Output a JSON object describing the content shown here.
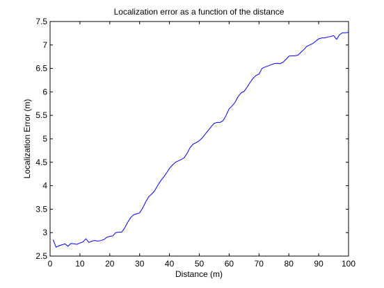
{
  "chart_data": {
    "type": "line",
    "title": "Localization error as a function of the distance",
    "xlabel": "Distance (m)",
    "ylabel": "Localization Error (m)",
    "xlim": [
      0,
      100
    ],
    "ylim": [
      2.5,
      7.5
    ],
    "xticks": [
      0,
      10,
      20,
      30,
      40,
      50,
      60,
      70,
      80,
      90,
      100
    ],
    "xtick_labels": [
      "0",
      "10",
      "20",
      "30",
      "40",
      "50",
      "60",
      "70",
      "80",
      "90",
      "100"
    ],
    "yticks": [
      2.5,
      3,
      3.5,
      4,
      4.5,
      5,
      5.5,
      6,
      6.5,
      7,
      7.5
    ],
    "ytick_labels": [
      "2.5",
      "3",
      "3.5",
      "4",
      "4.5",
      "5",
      "5.5",
      "6",
      "6.5",
      "7",
      "7.5"
    ],
    "grid": false,
    "color": "#0000ff",
    "series": [
      {
        "x": [
          1,
          2,
          3,
          4,
          5,
          6,
          7,
          8,
          9,
          10,
          11,
          12,
          13,
          14,
          15,
          16,
          17,
          18,
          19,
          20,
          21,
          22,
          23,
          24,
          25,
          26,
          27,
          28,
          29,
          30,
          31,
          32,
          33,
          34,
          35,
          36,
          37,
          38,
          39,
          40,
          41,
          42,
          43,
          44,
          45,
          46,
          47,
          48,
          49,
          50,
          51,
          52,
          53,
          54,
          55,
          56,
          57,
          58,
          59,
          60,
          61,
          62,
          63,
          64,
          65,
          66,
          67,
          68,
          69,
          70,
          71,
          72,
          73,
          74,
          75,
          76,
          77,
          78,
          79,
          80,
          81,
          82,
          83,
          84,
          85,
          86,
          87,
          88,
          89,
          90,
          91,
          92,
          93,
          94,
          95,
          96,
          97,
          98,
          99,
          100
        ],
        "values": [
          2.85,
          2.69,
          2.72,
          2.74,
          2.76,
          2.71,
          2.77,
          2.76,
          2.75,
          2.78,
          2.8,
          2.87,
          2.79,
          2.82,
          2.83,
          2.82,
          2.83,
          2.85,
          2.9,
          2.92,
          2.93,
          3.0,
          3.01,
          3.01,
          3.1,
          3.22,
          3.32,
          3.38,
          3.4,
          3.42,
          3.52,
          3.65,
          3.76,
          3.82,
          3.89,
          4.0,
          4.1,
          4.18,
          4.27,
          4.37,
          4.44,
          4.5,
          4.53,
          4.56,
          4.6,
          4.7,
          4.82,
          4.89,
          4.92,
          4.96,
          5.02,
          5.1,
          5.18,
          5.26,
          5.33,
          5.35,
          5.35,
          5.39,
          5.5,
          5.64,
          5.7,
          5.78,
          5.9,
          5.98,
          6.01,
          6.1,
          6.2,
          6.29,
          6.35,
          6.38,
          6.5,
          6.53,
          6.55,
          6.58,
          6.6,
          6.61,
          6.6,
          6.63,
          6.69,
          6.76,
          6.77,
          6.77,
          6.78,
          6.84,
          6.9,
          6.97,
          7.0,
          7.03,
          7.08,
          7.13,
          7.15,
          7.15,
          7.17,
          7.18,
          7.2,
          7.12,
          7.22,
          7.26,
          7.26,
          7.27
        ]
      }
    ]
  }
}
